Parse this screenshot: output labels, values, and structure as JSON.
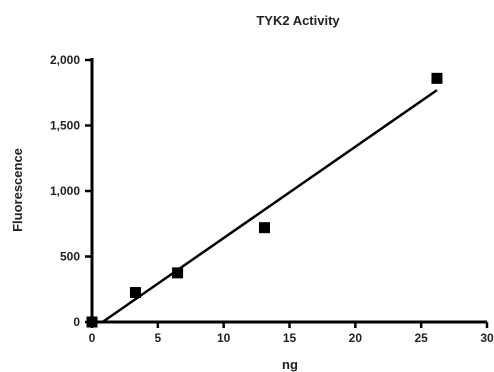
{
  "chart_data": {
    "type": "scatter",
    "title": "TYK2 Activity",
    "xlabel": "ng",
    "ylabel": "Fluorescence",
    "xlim": [
      0,
      30
    ],
    "ylim": [
      0,
      2000
    ],
    "x_ticks": [
      0,
      5,
      10,
      15,
      20,
      25,
      30
    ],
    "y_ticks": [
      0,
      500,
      1000,
      1500,
      2000
    ],
    "x_tick_labels": [
      "0",
      "5",
      "10",
      "15",
      "20",
      "25",
      "30"
    ],
    "y_tick_labels": [
      "0",
      "500",
      "1,000",
      "1,500",
      "2,000"
    ],
    "series": [
      {
        "marker": "square",
        "color": "#000000",
        "x": [
          0,
          3.3,
          6.5,
          13.1,
          26.2
        ],
        "y": [
          0,
          225,
          375,
          720,
          1860
        ]
      }
    ],
    "trendline": {
      "type": "linear",
      "x": [
        0.8,
        26.2
      ],
      "y": [
        0,
        1770
      ]
    },
    "grid": false
  }
}
